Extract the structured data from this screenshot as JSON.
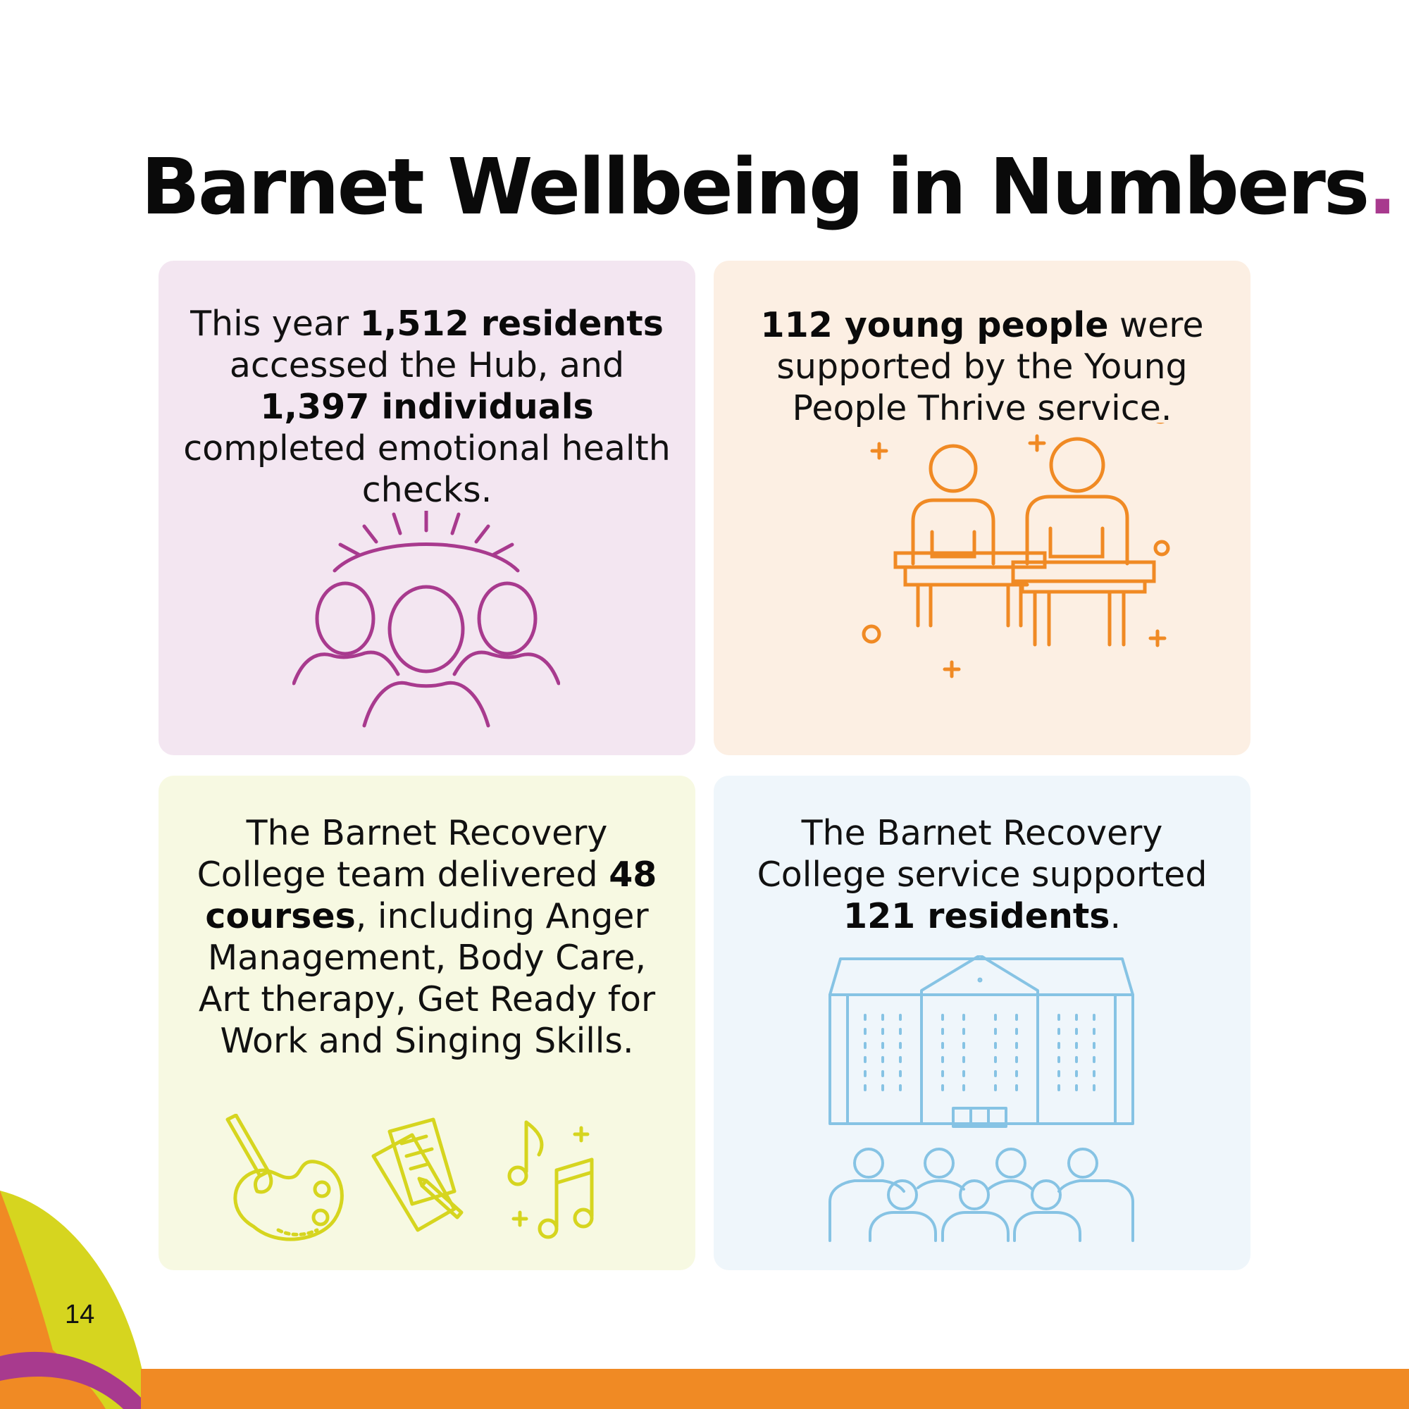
{
  "page": {
    "title": "Barnet Wellbeing in Numbers",
    "title_dot": ".",
    "page_number": "14"
  },
  "cards": [
    {
      "parts": [
        "This year ",
        "1,512 residents",
        " accessed the Hub, and ",
        "1,397 individuals",
        " completed emotional health checks."
      ],
      "icon": "group-people-icon",
      "accent": "#a83a8e",
      "background": "#f3e6f1"
    },
    {
      "parts": [
        "112 young people",
        " were supported by the Young People Thrive service."
      ],
      "icon": "students-at-desks-icon",
      "accent": "#f08a24",
      "background": "#fcefe3"
    },
    {
      "parts": [
        "The Barnet Recovery College team delivered ",
        "48 courses",
        ", including Anger Management, Body Care, Art therapy, Get Ready for Work and Singing Skills."
      ],
      "icons": [
        "art-palette-icon",
        "notes-writing-icon",
        "music-notes-icon"
      ],
      "accent": "#d6d51f",
      "background": "#f7f9e2"
    },
    {
      "parts": [
        "The Barnet Recovery College service supported ",
        "121 residents",
        "."
      ],
      "icon": "college-building-with-people-icon",
      "accent": "#86c3e4",
      "background": "#eff6fb"
    }
  ],
  "colors": {
    "purple": "#a83a8e",
    "orange": "#f08a24",
    "lime": "#d6d51f",
    "blue": "#86c3e4",
    "footer_bar": "#f08a24"
  }
}
